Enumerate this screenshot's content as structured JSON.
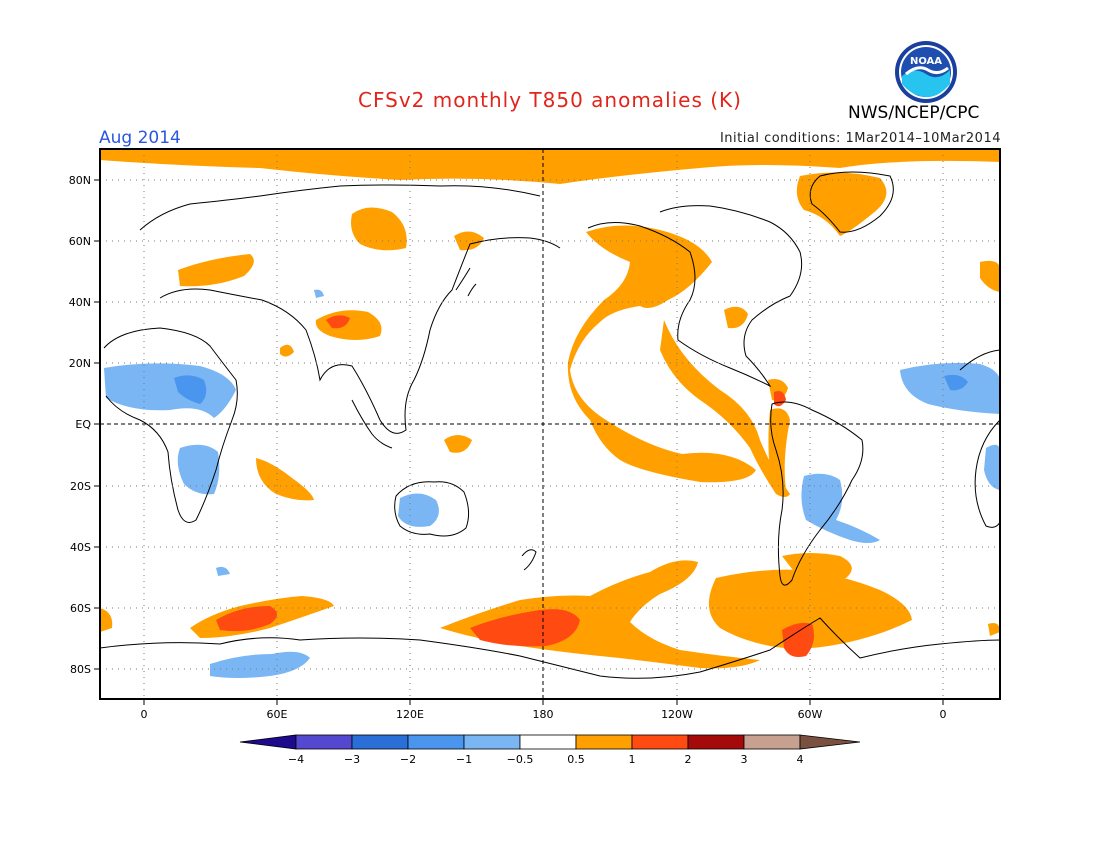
{
  "header": {
    "title": "CFSv2 monthly T850 anomalies (K)",
    "month": "Aug 2014",
    "initial_conditions": "Initial conditions: 1Mar2014–10Mar2014",
    "agency": "NWS/NCEP/CPC",
    "logo_text": "NOAA",
    "logo_icon": "noaa-logo-icon"
  },
  "map": {
    "lat_labels": [
      "80N",
      "60N",
      "40N",
      "20N",
      "EQ",
      "20S",
      "40S",
      "60S",
      "80S"
    ],
    "lon_labels": [
      "0",
      "60E",
      "120E",
      "180",
      "120W",
      "60W",
      "0"
    ]
  },
  "colorbar": {
    "labels": [
      "−4",
      "−3",
      "−2",
      "−1",
      "−0.5",
      "0.5",
      "1",
      "2",
      "3",
      "4"
    ],
    "colors": {
      "below_-4": "#1e0a8c",
      "-4_-3": "#5548d0",
      "-3_-2": "#2a6fd8",
      "-2_-1": "#4a96ee",
      "-1_-0.5": "#7ab6f4",
      "-0.5_0.5": "#ffffff",
      "0.5_1": "#ffa000",
      "1_2": "#ff4a12",
      "2_3": "#a50a0a",
      "3_4": "#c8a090",
      "above_4": "#7a5040"
    }
  }
}
